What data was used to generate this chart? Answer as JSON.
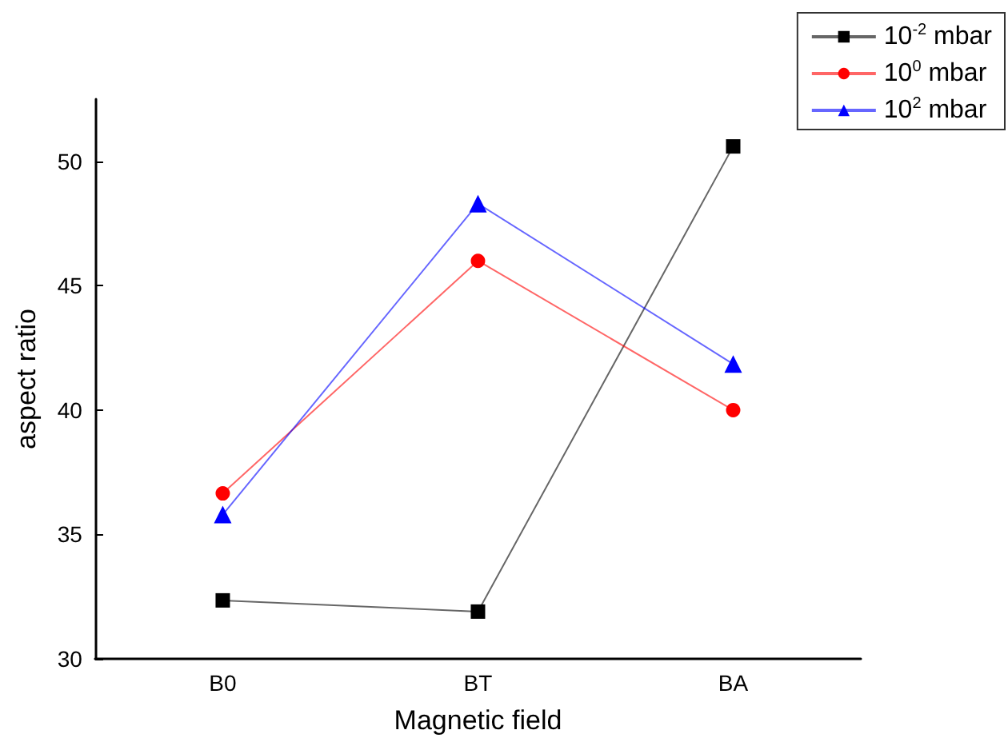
{
  "chart_data": {
    "type": "line",
    "xlabel": "Magnetic field",
    "ylabel": "aspect ratio",
    "categories": [
      "B0",
      "BT",
      "BA"
    ],
    "series": [
      {
        "name": "10$^{-2}$ mbar",
        "color": "#000000",
        "marker": "square",
        "values": [
          32.35,
          31.9,
          50.6
        ]
      },
      {
        "name": "10$^{0}$ mbar",
        "color": "#ff0000",
        "marker": "circle",
        "values": [
          36.65,
          46.0,
          40.0
        ]
      },
      {
        "name": "10$^{2}$ mbar",
        "color": "#0000ff",
        "marker": "triangle",
        "values": [
          35.8,
          48.3,
          41.85
        ]
      }
    ],
    "ylim": [
      30,
      52.5
    ],
    "yticks": [
      30,
      35,
      40,
      45,
      50
    ],
    "grid": false,
    "legend": "top right"
  }
}
